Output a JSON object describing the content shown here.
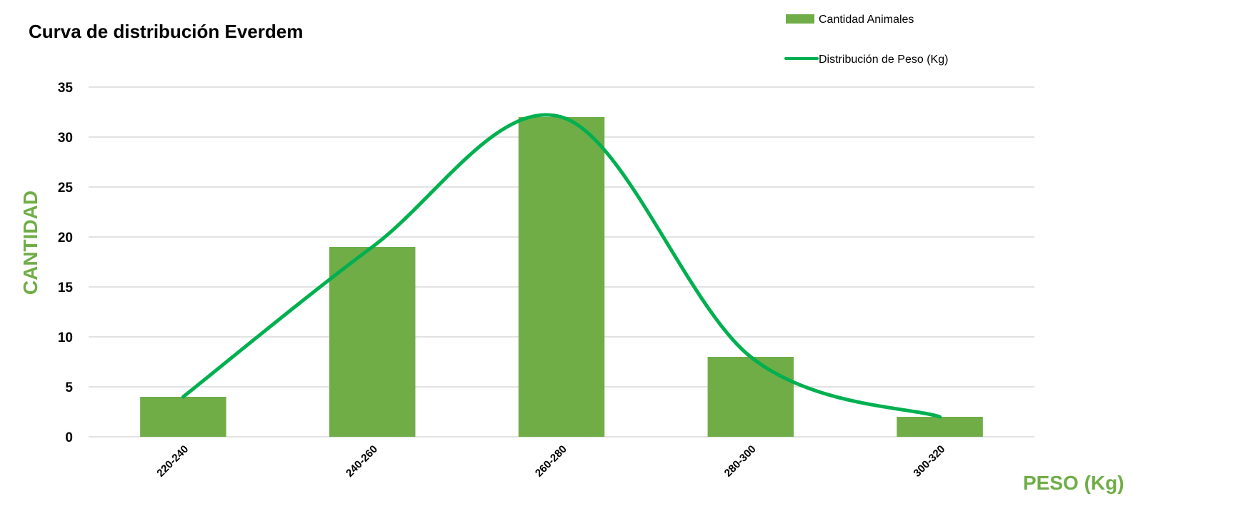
{
  "chart_data": {
    "type": "bar",
    "title": "Curva de distribución Everdem",
    "xlabel": "PESO (Kg)",
    "ylabel": "CANTIDAD",
    "categories": [
      "220-240",
      "240-260",
      "260-280",
      "280-300",
      "300-320"
    ],
    "series": [
      {
        "name": "Cantidad Animales",
        "type": "bar",
        "values": [
          4,
          19,
          32,
          8,
          2
        ],
        "color": "#70AD47"
      },
      {
        "name": "Distribución de Peso (Kg)",
        "type": "line",
        "smooth": true,
        "values": [
          4,
          19,
          32,
          8,
          2
        ],
        "color": "#00B050"
      }
    ],
    "ylim": [
      0,
      35
    ],
    "yticks": [
      0,
      5,
      10,
      15,
      20,
      25,
      30,
      35
    ],
    "grid": true,
    "legend": "top-right",
    "colors": {
      "axis_title": "#70AD47",
      "grid": "#D9D9D9",
      "axis_line": "#D9D9D9"
    }
  }
}
